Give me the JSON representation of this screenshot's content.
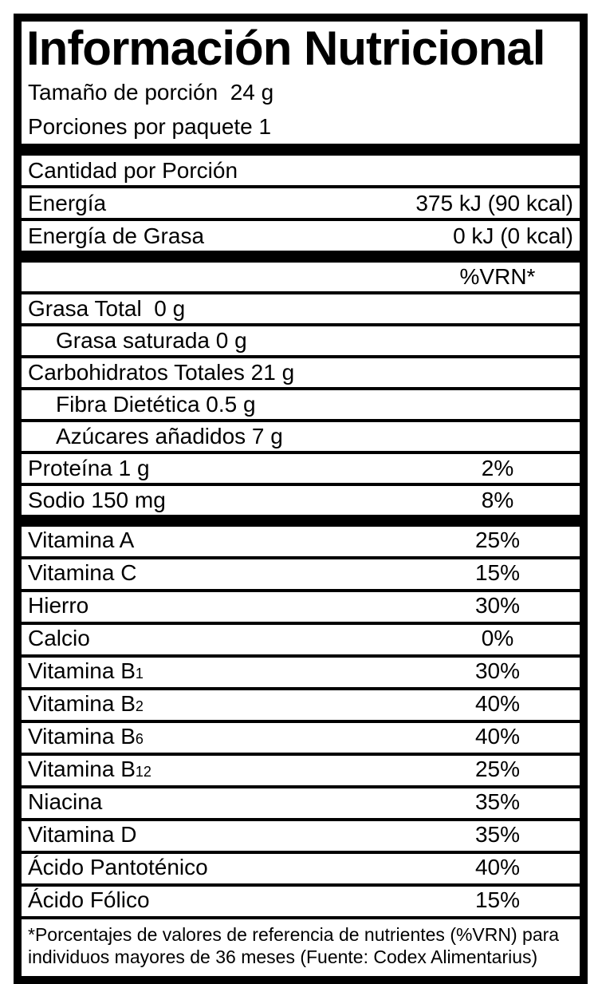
{
  "label": {
    "title": "Información Nutricional",
    "serving": {
      "size": "Tamaño de porción  24 g",
      "per_package": "Porciones por paquete 1"
    },
    "amount_header": "Cantidad por Porción",
    "energy_rows": [
      {
        "label": "Energía",
        "value": "375 kJ (90 kcal)"
      },
      {
        "label": "Energía de Grasa",
        "value": "0 kJ (0 kcal)"
      }
    ],
    "vrn_header": "%VRN*",
    "macro_rows": [
      {
        "label": "Grasa Total  0 g",
        "percent": "",
        "indent": false
      },
      {
        "label": "Grasa saturada 0 g",
        "percent": "",
        "indent": true
      },
      {
        "label": "Carbohidratos Totales 21 g",
        "percent": "",
        "indent": false
      },
      {
        "label": "Fibra Dietética 0.5 g",
        "percent": "",
        "indent": true
      },
      {
        "label": "Azúcares añadidos 7 g",
        "percent": "",
        "indent": true
      },
      {
        "label": "Proteína 1 g",
        "percent": "2%",
        "indent": false
      },
      {
        "label": "Sodio 150 mg",
        "percent": "8%",
        "indent": false
      }
    ],
    "vitamin_rows": [
      {
        "label": "Vitamina A",
        "sub": "",
        "percent": "25%"
      },
      {
        "label": "Vitamina C",
        "sub": "",
        "percent": "15%"
      },
      {
        "label": "Hierro",
        "sub": "",
        "percent": "30%"
      },
      {
        "label": "Calcio",
        "sub": "",
        "percent": "0%"
      },
      {
        "label": "Vitamina B",
        "sub": "1",
        "percent": "30%"
      },
      {
        "label": "Vitamina B",
        "sub": "2",
        "percent": "40%"
      },
      {
        "label": "Vitamina B",
        "sub": "6",
        "percent": "40%"
      },
      {
        "label": "Vitamina B",
        "sub": "12",
        "percent": "25%"
      },
      {
        "label": "Niacina",
        "sub": "",
        "percent": "35%"
      },
      {
        "label": "Vitamina D",
        "sub": "",
        "percent": "35%"
      },
      {
        "label": "Ácido Pantoténico",
        "sub": "",
        "percent": "40%"
      },
      {
        "label": "Ácido Fólico",
        "sub": "",
        "percent": "15%"
      }
    ],
    "footnote": "*Porcentajes de valores de referencia de nutrientes (%VRN) para individuos mayores de 36 meses (Fuente: Codex Alimentarius)",
    "colors": {
      "ink": "#000000",
      "background": "#ffffff"
    }
  }
}
